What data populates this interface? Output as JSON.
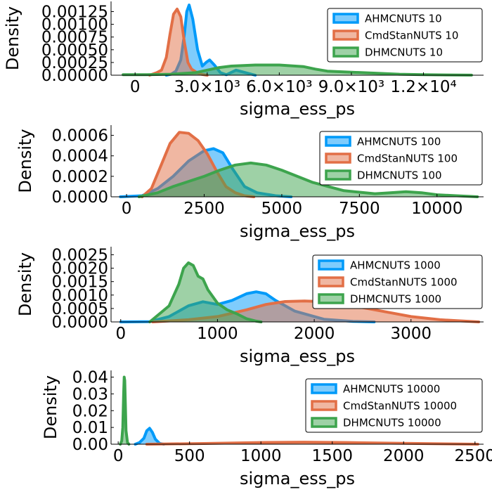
{
  "figure": {
    "background": "#ffffff"
  },
  "chart_data": [
    {
      "type": "area",
      "xlabel": "sigma_ess_ps",
      "ylabel": "Density",
      "xlim": [
        -1000,
        14500
      ],
      "ylim": [
        0,
        0.00145
      ],
      "xticks": [
        0,
        3000,
        6000,
        9000,
        12000
      ],
      "xtick_labels": [
        "0",
        "3.0×10³",
        "6.0×10³",
        "9.0×10³",
        "1.2×10⁴"
      ],
      "yticks": [
        0,
        0.00025,
        0.0005,
        0.00075,
        0.001,
        0.00125
      ],
      "ytick_labels": [
        "0.00000",
        "0.00025",
        "0.00050",
        "0.00075",
        "0.00100",
        "0.00125"
      ],
      "legend": "top-right",
      "series": [
        {
          "name": "AHMCNUTS 10",
          "color": "#009af9",
          "x": [
            1300,
            1500,
            1700,
            1900,
            2050,
            2150,
            2250,
            2400,
            2600,
            2800,
            2950,
            3100,
            3300,
            3550,
            3800,
            4200,
            4600,
            5000
          ],
          "y": [
            0,
            2e-05,
            8e-05,
            0.0003,
            0.0008,
            0.00125,
            0.00138,
            0.0011,
            0.0005,
            0.00018,
            0.00025,
            0.0003,
            0.0002,
            5e-05,
            1e-05,
            0.0001,
            5e-05,
            0
          ]
        },
        {
          "name": "CmdStanNUTS 10",
          "color": "#e26f46",
          "x": [
            600,
            900,
            1100,
            1300,
            1450,
            1600,
            1750,
            1900,
            2050,
            2200,
            2350,
            2550,
            2750,
            3000
          ],
          "y": [
            0,
            5e-05,
            0.0001,
            0.00035,
            0.0008,
            0.0012,
            0.0013,
            0.00115,
            0.00065,
            0.00025,
            0.00012,
            6e-05,
            2e-05,
            0
          ]
        },
        {
          "name": "DHMCNUTS 10",
          "color": "#3da44d",
          "x": [
            -500,
            500,
            1500,
            2500,
            3000,
            3500,
            4000,
            5000,
            6000,
            7000,
            7500,
            8000,
            9000,
            10000,
            11000,
            12000,
            13000,
            14000
          ],
          "y": [
            1e-05,
            1e-05,
            2e-05,
            5e-05,
            0.0001,
            0.00015,
            0.00018,
            0.0002,
            0.0002,
            0.00017,
            0.00012,
            8e-05,
            6e-05,
            4e-05,
            2e-05,
            1e-05,
            5e-06,
            2e-06
          ]
        }
      ]
    },
    {
      "type": "area",
      "xlabel": "sigma_ess_ps",
      "ylabel": "Density",
      "xlim": [
        -500,
        11500
      ],
      "ylim": [
        0,
        0.0007
      ],
      "xticks": [
        0,
        2500,
        5000,
        7500,
        10000
      ],
      "xtick_labels": [
        "0",
        "2500",
        "5000",
        "7500",
        "10000"
      ],
      "yticks": [
        0,
        0.0002,
        0.0004,
        0.0006
      ],
      "ytick_labels": [
        "0.0000",
        "0.0002",
        "0.0004",
        "0.0006"
      ],
      "legend": "top-right",
      "series": [
        {
          "name": "AHMCNUTS 100",
          "color": "#009af9",
          "x": [
            -200,
            500,
            1000,
            1500,
            2000,
            2500,
            2800,
            3100,
            3400,
            3800,
            4200,
            4800,
            5300
          ],
          "y": [
            0,
            1e-05,
            8e-05,
            0.0002,
            0.00035,
            0.00045,
            0.00047,
            0.00043,
            0.00028,
            0.0001,
            4e-05,
            1e-05,
            0
          ]
        },
        {
          "name": "CmdStanNUTS 100",
          "color": "#e26f46",
          "x": [
            500,
            800,
            1100,
            1400,
            1700,
            2000,
            2300,
            2600,
            2900,
            3200,
            3500,
            3800,
            4100
          ],
          "y": [
            0,
            8e-05,
            0.0003,
            0.00052,
            0.00063,
            0.00062,
            0.00055,
            0.00042,
            0.00025,
            0.0001,
            4e-05,
            1e-05,
            0
          ]
        },
        {
          "name": "DHMCNUTS 100",
          "color": "#3da44d",
          "x": [
            400,
            1000,
            1500,
            2000,
            2500,
            3000,
            3500,
            4000,
            4500,
            5000,
            5500,
            6000,
            7000,
            8000,
            8500,
            9000,
            9500,
            10000,
            11300
          ],
          "y": [
            0,
            4e-05,
            0.0001,
            0.00015,
            0.0002,
            0.00026,
            0.00031,
            0.00033,
            0.00031,
            0.00026,
            0.0002,
            0.00014,
            6e-05,
            3e-05,
            4e-05,
            5e-05,
            4e-05,
            2e-05,
            0
          ]
        }
      ]
    },
    {
      "type": "area",
      "xlabel": "sigma_ess_ps",
      "ylabel": "Density",
      "xlim": [
        -100,
        3750
      ],
      "ylim": [
        0,
        0.0028
      ],
      "xticks": [
        0,
        1000,
        2000,
        3000
      ],
      "xtick_labels": [
        "0",
        "1000",
        "2000",
        "3000"
      ],
      "yticks": [
        0,
        0.0005,
        0.001,
        0.0015,
        0.002,
        0.0025
      ],
      "ytick_labels": [
        "0.0000",
        "0.0005",
        "0.0010",
        "0.0015",
        "0.0020",
        "0.0025"
      ],
      "legend": "top-right",
      "series": [
        {
          "name": "AHMCNUTS 1000",
          "color": "#009af9",
          "x": [
            0,
            300,
            500,
            700,
            850,
            1000,
            1150,
            1300,
            1400,
            1500,
            1600,
            1800,
            2100,
            2400,
            2620
          ],
          "y": [
            0,
            1e-05,
            0.0002,
            0.0006,
            0.00075,
            0.00065,
            0.0008,
            0.00105,
            0.00112,
            0.00105,
            0.0008,
            0.0004,
            0.0001,
            2e-05,
            0
          ]
        },
        {
          "name": "CmdStanNUTS 1000",
          "color": "#e26f46",
          "x": [
            330,
            700,
            1000,
            1300,
            1500,
            1700,
            1900,
            2100,
            2400,
            2700,
            3000,
            3300,
            3700
          ],
          "y": [
            0,
            8e-05,
            0.0002,
            0.00045,
            0.00065,
            0.00076,
            0.00078,
            0.00075,
            0.0006,
            0.0004,
            0.0002,
            8e-05,
            0
          ]
        },
        {
          "name": "DHMCNUTS 1000",
          "color": "#3da44d",
          "x": [
            300,
            500,
            600,
            650,
            700,
            750,
            800,
            850,
            900,
            1000,
            1100,
            1200,
            1300,
            1400,
            1450
          ],
          "y": [
            0,
            0.0006,
            0.0014,
            0.002,
            0.0022,
            0.0021,
            0.0017,
            0.0016,
            0.0012,
            0.0007,
            0.00045,
            0.0003,
            0.00012,
            3e-05,
            0
          ]
        }
      ]
    },
    {
      "type": "area",
      "xlabel": "sigma_ess_ps",
      "ylabel": "Density",
      "xlim": [
        -50,
        2560
      ],
      "ylim": [
        0,
        0.044
      ],
      "xticks": [
        0,
        500,
        1000,
        1500,
        2000,
        2500
      ],
      "xtick_labels": [
        "0",
        "500",
        "1000",
        "1500",
        "2000",
        "2500"
      ],
      "yticks": [
        0,
        0.01,
        0.02,
        0.03,
        0.04
      ],
      "ytick_labels": [
        "0.00",
        "0.01",
        "0.02",
        "0.03",
        "0.04"
      ],
      "legend": "top-right",
      "series": [
        {
          "name": "AHMCNUTS 10000",
          "color": "#009af9",
          "x": [
            120,
            150,
            180,
            200,
            220,
            240,
            260,
            290,
            320
          ],
          "y": [
            0,
            0.001,
            0.0035,
            0.008,
            0.0095,
            0.007,
            0.003,
            0.0005,
            0
          ]
        },
        {
          "name": "CmdStanNUTS 10000",
          "color": "#e26f46",
          "x": [
            200,
            600,
            1000,
            1300,
            1600,
            2000,
            2300,
            2520
          ],
          "y": [
            0,
            0.0004,
            0.001,
            0.0012,
            0.001,
            0.0005,
            0.0002,
            0
          ]
        },
        {
          "name": "DHMCNUTS 10000",
          "color": "#3da44d",
          "x": [
            15,
            25,
            32,
            38,
            42,
            46,
            50,
            55,
            65,
            75
          ],
          "y": [
            0,
            0.002,
            0.01,
            0.03,
            0.04,
            0.038,
            0.025,
            0.008,
            0.001,
            0
          ]
        }
      ]
    }
  ]
}
